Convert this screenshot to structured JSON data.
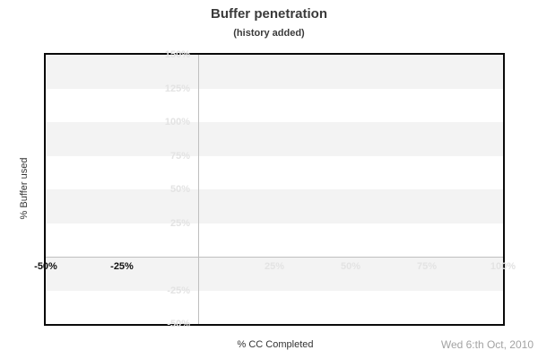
{
  "header": {
    "title": "Buffer penetration",
    "subtitle": "(history added)"
  },
  "chart_data": {
    "type": "area",
    "title": "Buffer penetration",
    "subtitle": "(history added)",
    "xlabel": "% CC Completed",
    "ylabel": "% Buffer used",
    "date_note": "Wed 6:th Oct, 2010",
    "xlim": [
      -50,
      100
    ],
    "ylim": [
      -50,
      150
    ],
    "tick_step": 25,
    "grid": "alternating-horizontal-bands-every-25pct",
    "legend": "none",
    "series": [],
    "x_ticks": [
      {
        "label": "-50%",
        "value": -50,
        "muted": false
      },
      {
        "label": "-25%",
        "value": -25,
        "muted": false
      },
      {
        "label": "25%",
        "value": 25,
        "muted": true
      },
      {
        "label": "50%",
        "value": 50,
        "muted": true
      },
      {
        "label": "75%",
        "value": 75,
        "muted": true
      },
      {
        "label": "100%",
        "value": 100,
        "muted": true
      }
    ],
    "y_ticks": [
      {
        "label": "150%",
        "value": 150,
        "muted": true
      },
      {
        "label": "125%",
        "value": 125,
        "muted": true
      },
      {
        "label": "100%",
        "value": 100,
        "muted": true
      },
      {
        "label": "75%",
        "value": 75,
        "muted": true
      },
      {
        "label": "50%",
        "value": 50,
        "muted": true
      },
      {
        "label": "25%",
        "value": 25,
        "muted": true
      },
      {
        "label": "-25%",
        "value": -25,
        "muted": true
      },
      {
        "label": "-50%",
        "value": -50,
        "muted": true
      }
    ],
    "colors": {
      "band": "#f3f3f3",
      "tick_muted": "#e3e3e3",
      "tick_dark": "#111111",
      "zero_line": "#bfbfbf",
      "plot_border": "#0a0a0a",
      "title_text": "#3a3a3a",
      "axis_title_text": "#333333",
      "date_text": "#a3a3a3"
    }
  }
}
